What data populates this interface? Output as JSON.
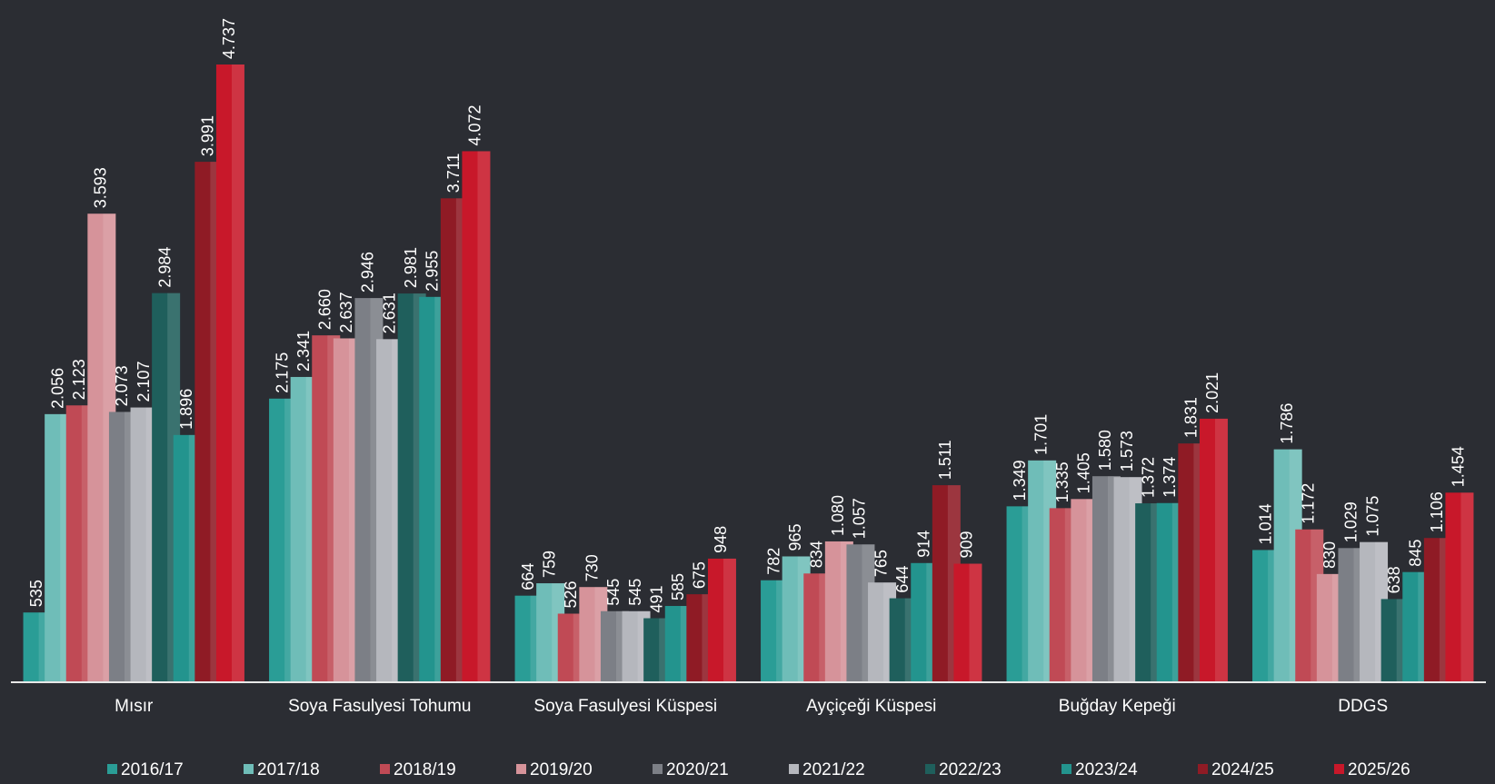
{
  "chart_data": {
    "type": "bar",
    "categories": [
      "Mısır",
      "Soya Fasulyesi Tohumu",
      "Soya Fasulyesi Küspesi",
      "Ayçiçeği Küspesi",
      "Buğday Kepeği",
      "DDGS"
    ],
    "series": [
      {
        "name": "2016/17",
        "color": "#2a9d96",
        "values": [
          535,
          2175,
          664,
          782,
          1349,
          1014
        ],
        "value_labels": [
          "535",
          "2.175",
          "664",
          "782",
          "1.349",
          "1.014"
        ]
      },
      {
        "name": "2017/18",
        "color": "#6fbdb8",
        "values": [
          2056,
          2341,
          759,
          965,
          1701,
          1786
        ],
        "value_labels": [
          "2.056",
          "2.341",
          "759",
          "965",
          "1.701",
          "1.786"
        ]
      },
      {
        "name": "2018/19",
        "color": "#c04a55",
        "values": [
          2123,
          2660,
          526,
          834,
          1335,
          1172
        ],
        "value_labels": [
          "2.123",
          "2.660",
          "526",
          "834",
          "1.335",
          "1.172"
        ]
      },
      {
        "name": "2019/20",
        "color": "#d6939a",
        "values": [
          3593,
          2637,
          730,
          1080,
          1405,
          830
        ],
        "value_labels": [
          "3.593",
          "2.637",
          "730",
          "1.080",
          "1.405",
          "830"
        ]
      },
      {
        "name": "2020/21",
        "color": "#7c7f86",
        "values": [
          2073,
          2946,
          545,
          1057,
          1580,
          1029
        ],
        "value_labels": [
          "2.073",
          "2.946",
          "545",
          "1.057",
          "1.580",
          "1.029"
        ]
      },
      {
        "name": "2021/22",
        "color": "#b5b7bd",
        "values": [
          2107,
          2631,
          545,
          765,
          1573,
          1075
        ],
        "value_labels": [
          "2.107",
          "2.631",
          "545",
          "765",
          "1.573",
          "1.075"
        ]
      },
      {
        "name": "2022/23",
        "color": "#1f5f5c",
        "values": [
          2984,
          2981,
          491,
          644,
          1372,
          638
        ],
        "value_labels": [
          "2.984",
          "2.981",
          "491",
          "644",
          "1.372",
          "638"
        ]
      },
      {
        "name": "2023/24",
        "color": "#23948e",
        "values": [
          1896,
          2955,
          585,
          914,
          1374,
          845
        ],
        "value_labels": [
          "1.896",
          "2.955",
          "585",
          "914",
          "1.374",
          "845"
        ]
      },
      {
        "name": "2024/25",
        "color": "#8f1b25",
        "values": [
          3991,
          3711,
          675,
          1511,
          1831,
          1106
        ],
        "value_labels": [
          "3.991",
          "3.711",
          "675",
          "1.511",
          "1.831",
          "1.106"
        ]
      },
      {
        "name": "2025/26",
        "color": "#c8182a",
        "values": [
          4737,
          4072,
          948,
          909,
          2021,
          1454
        ],
        "value_labels": [
          "4.737",
          "4.072",
          "948",
          "909",
          "2.021",
          "1.454"
        ]
      }
    ]
  }
}
